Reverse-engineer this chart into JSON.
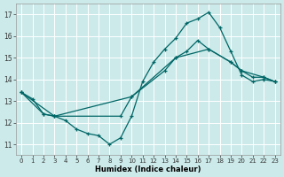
{
  "xlabel": "Humidex (Indice chaleur)",
  "bg_color": "#cceaea",
  "grid_color": "#ffffff",
  "line_color": "#006666",
  "xlim": [
    -0.5,
    23.5
  ],
  "ylim": [
    10.5,
    17.5
  ],
  "xticks": [
    0,
    1,
    2,
    3,
    4,
    5,
    6,
    7,
    8,
    9,
    10,
    11,
    12,
    13,
    14,
    15,
    16,
    17,
    18,
    19,
    20,
    21,
    22,
    23
  ],
  "yticks": [
    11,
    12,
    13,
    14,
    15,
    16,
    17
  ],
  "curve1_x": [
    0,
    1,
    2,
    3,
    4,
    5,
    6,
    7,
    8,
    9,
    10,
    11,
    12,
    13,
    14,
    15,
    16,
    17,
    18,
    19,
    20,
    21,
    22,
    23
  ],
  "curve1_y": [
    13.4,
    13.1,
    12.4,
    12.3,
    12.1,
    11.7,
    11.5,
    11.4,
    11.0,
    11.3,
    12.3,
    13.9,
    14.8,
    15.4,
    15.9,
    16.6,
    16.8,
    17.1,
    16.4,
    15.3,
    14.2,
    13.9,
    14.0,
    13.9
  ],
  "curve2_x": [
    0,
    2,
    3,
    9,
    10,
    13,
    14,
    15,
    16,
    17,
    19,
    20,
    22,
    23
  ],
  "curve2_y": [
    13.4,
    12.4,
    12.3,
    12.3,
    13.2,
    14.4,
    15.0,
    15.3,
    15.8,
    15.4,
    14.8,
    14.4,
    14.1,
    13.9
  ],
  "curve3_x": [
    0,
    3,
    10,
    14,
    17,
    19,
    20,
    21,
    22,
    23
  ],
  "curve3_y": [
    13.4,
    12.3,
    13.2,
    15.0,
    15.4,
    14.8,
    14.4,
    14.1,
    14.1,
    13.9
  ]
}
